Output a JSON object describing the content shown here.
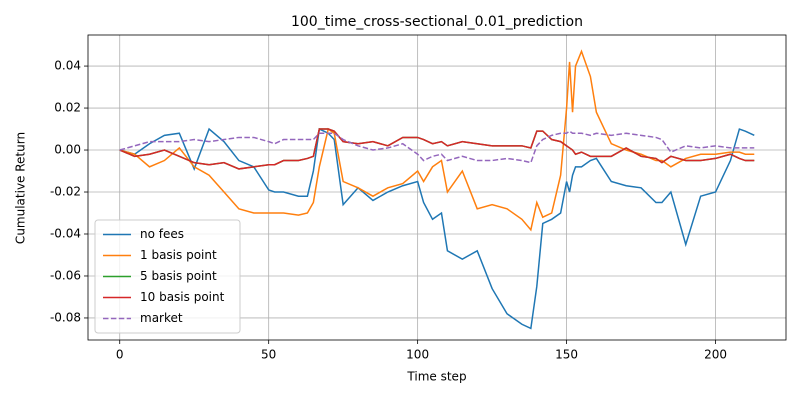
{
  "chart_data": {
    "type": "line",
    "title": "100_time_cross-sectional_0.01_prediction",
    "x_label": "Time step",
    "y_label": "Cumulative Return",
    "x": [
      0,
      5,
      10,
      15,
      20,
      25,
      30,
      35,
      40,
      45,
      50,
      52,
      55,
      60,
      63,
      65,
      67,
      70,
      72,
      75,
      80,
      85,
      90,
      95,
      100,
      102,
      105,
      108,
      110,
      115,
      120,
      125,
      130,
      135,
      138,
      140,
      142,
      145,
      148,
      150,
      151,
      152,
      153,
      155,
      158,
      160,
      165,
      170,
      175,
      180,
      182,
      185,
      190,
      195,
      200,
      205,
      208,
      210,
      213
    ],
    "series": [
      {
        "name": "no fees",
        "color": "#1f77b4",
        "dash": false,
        "values": [
          0,
          -0.002,
          0.003,
          0.007,
          0.008,
          -0.009,
          0.01,
          0.004,
          -0.005,
          -0.008,
          -0.019,
          -0.02,
          -0.02,
          -0.022,
          -0.022,
          -0.01,
          0.01,
          0.008,
          0.005,
          -0.026,
          -0.018,
          -0.024,
          -0.02,
          -0.017,
          -0.015,
          -0.025,
          -0.033,
          -0.03,
          -0.048,
          -0.052,
          -0.048,
          -0.066,
          -0.078,
          -0.083,
          -0.085,
          -0.065,
          -0.035,
          -0.033,
          -0.03,
          -0.015,
          -0.02,
          -0.012,
          -0.008,
          -0.008,
          -0.005,
          -0.004,
          -0.015,
          -0.017,
          -0.018,
          -0.025,
          -0.025,
          -0.02,
          -0.045,
          -0.022,
          -0.02,
          -0.005,
          0.01,
          0.009,
          0.007
        ]
      },
      {
        "name": "1 basis point",
        "color": "#ff7f0e",
        "dash": false,
        "values": [
          0,
          -0.002,
          -0.008,
          -0.005,
          0.001,
          -0.008,
          -0.012,
          -0.02,
          -0.028,
          -0.03,
          -0.03,
          -0.03,
          -0.03,
          -0.031,
          -0.03,
          -0.025,
          -0.008,
          0.01,
          0.008,
          -0.015,
          -0.018,
          -0.022,
          -0.018,
          -0.016,
          -0.01,
          -0.015,
          -0.008,
          -0.005,
          -0.02,
          -0.01,
          -0.028,
          -0.026,
          -0.028,
          -0.033,
          -0.038,
          -0.025,
          -0.032,
          -0.03,
          -0.012,
          0.02,
          0.042,
          0.018,
          0.04,
          0.047,
          0.035,
          0.018,
          0.003,
          0.0,
          -0.002,
          -0.005,
          -0.005,
          -0.008,
          -0.004,
          -0.002,
          -0.002,
          -0.001,
          -0.001,
          -0.002,
          -0.002
        ]
      },
      {
        "name": "5 basis point",
        "color": "#2ca02c",
        "dash": false,
        "values": [
          0,
          -0.003,
          -0.002,
          0.0,
          -0.003,
          -0.006,
          -0.007,
          -0.006,
          -0.009,
          -0.008,
          -0.007,
          -0.007,
          -0.005,
          -0.005,
          -0.004,
          -0.003,
          0.01,
          0.01,
          0.009,
          0.004,
          0.003,
          0.004,
          0.002,
          0.006,
          0.006,
          0.005,
          0.003,
          0.004,
          0.002,
          0.004,
          0.003,
          0.002,
          0.002,
          0.002,
          0.001,
          0.009,
          0.009,
          0.005,
          0.004,
          0.002,
          0.001,
          0.0,
          -0.002,
          -0.001,
          -0.003,
          -0.003,
          -0.003,
          0.001,
          -0.003,
          -0.004,
          -0.006,
          -0.003,
          -0.005,
          -0.005,
          -0.004,
          -0.002,
          -0.004,
          -0.005,
          -0.005
        ]
      },
      {
        "name": "10 basis point",
        "color": "#d62728",
        "dash": false,
        "values": [
          0,
          -0.003,
          -0.002,
          0.0,
          -0.003,
          -0.006,
          -0.007,
          -0.006,
          -0.009,
          -0.008,
          -0.007,
          -0.007,
          -0.005,
          -0.005,
          -0.004,
          -0.003,
          0.01,
          0.01,
          0.009,
          0.004,
          0.003,
          0.004,
          0.002,
          0.006,
          0.006,
          0.005,
          0.003,
          0.004,
          0.002,
          0.004,
          0.003,
          0.002,
          0.002,
          0.002,
          0.001,
          0.009,
          0.009,
          0.005,
          0.004,
          0.002,
          0.001,
          0.0,
          -0.002,
          -0.001,
          -0.003,
          -0.003,
          -0.003,
          0.001,
          -0.003,
          -0.004,
          -0.006,
          -0.003,
          -0.005,
          -0.005,
          -0.004,
          -0.002,
          -0.004,
          -0.005,
          -0.005
        ]
      },
      {
        "name": "market",
        "color": "#9467bd",
        "dash": true,
        "values": [
          0,
          0.002,
          0.004,
          0.004,
          0.004,
          0.005,
          0.004,
          0.005,
          0.006,
          0.006,
          0.004,
          0.003,
          0.005,
          0.005,
          0.005,
          0.005,
          0.008,
          0.008,
          0.008,
          0.005,
          0.002,
          0.0,
          0.001,
          0.003,
          -0.002,
          -0.005,
          -0.003,
          -0.002,
          -0.005,
          -0.003,
          -0.005,
          -0.005,
          -0.004,
          -0.005,
          -0.006,
          0.002,
          0.005,
          0.007,
          0.008,
          0.008,
          0.009,
          0.008,
          0.008,
          0.008,
          0.007,
          0.008,
          0.007,
          0.008,
          0.007,
          0.006,
          0.005,
          -0.001,
          0.002,
          0.001,
          0.002,
          0.001,
          0.001,
          0.001,
          0.001
        ]
      }
    ],
    "xlim": [
      -10.65,
      223.65
    ],
    "ylim": [
      -0.0905,
      0.0548
    ],
    "xticks": [
      0,
      50,
      100,
      150,
      200
    ],
    "yticks": [
      -0.08,
      -0.06,
      -0.04,
      -0.02,
      {
        "value": 0,
        "label": "0.00"
      },
      0.02,
      0.04
    ],
    "grid": true,
    "legend": "lower left"
  }
}
